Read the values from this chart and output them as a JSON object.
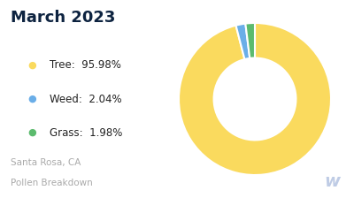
{
  "title": "March 2023",
  "subtitle_line1": "Santa Rosa, CA",
  "subtitle_line2": "Pollen Breakdown",
  "categories": [
    "Tree",
    "Weed",
    "Grass"
  ],
  "values": [
    95.98,
    2.04,
    1.98
  ],
  "labels": [
    "Tree:  95.98%",
    "Weed:  2.04%",
    "Grass:  1.98%"
  ],
  "colors": [
    "#FADA5E",
    "#6AAEE8",
    "#5CBB6E"
  ],
  "title_color": "#0D2340",
  "subtitle_color": "#AAAAAA",
  "legend_color": "#222222",
  "background_color": "#FFFFFF",
  "donut_hole": 0.54,
  "watermark_color": "#AABBDD",
  "watermark_alpha": 0.75
}
